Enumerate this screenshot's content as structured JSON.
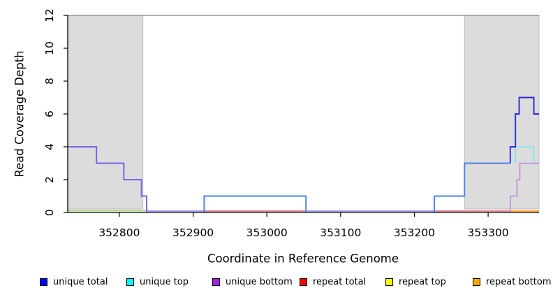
{
  "chart_data": {
    "type": "line",
    "subtype": "step-coverage",
    "title": "",
    "xlabel": "Coordinate in Reference Genome",
    "ylabel": "Read Coverage Depth",
    "xlim": [
      352730,
      353369
    ],
    "ylim": [
      0,
      12
    ],
    "xticks": [
      352800,
      352900,
      353000,
      353100,
      353200,
      353300
    ],
    "yticks": [
      0,
      2,
      4,
      6,
      8,
      10,
      12
    ],
    "grid": false,
    "legend_position": "bottom",
    "legend": [
      {
        "label": "unique total",
        "color": "#0000FF"
      },
      {
        "label": "unique top",
        "color": "#00FFFF"
      },
      {
        "label": "unique bottom",
        "color": "#A020F0"
      },
      {
        "label": "repeat total",
        "color": "#FF0000"
      },
      {
        "label": "repeat top",
        "color": "#FFFF00"
      },
      {
        "label": "repeat bottom",
        "color": "#FFA500"
      }
    ],
    "shaded_regions": [
      {
        "x0": 352730,
        "x1": 352832
      },
      {
        "x0": 353268,
        "x1": 353369
      }
    ],
    "top_reference_line": {
      "y": 12,
      "color": "#999999"
    },
    "series": [
      {
        "name": "unique total",
        "color": "#0000FF",
        "steps": [
          [
            352730,
            4
          ],
          [
            352769,
            3
          ],
          [
            352806,
            2
          ],
          [
            352830,
            1
          ],
          [
            352837,
            0
          ],
          [
            352915,
            1
          ],
          [
            353053,
            0
          ],
          [
            353227,
            1
          ],
          [
            353268,
            3
          ],
          [
            353330,
            4
          ],
          [
            353337,
            6
          ],
          [
            353342,
            7
          ],
          [
            353362,
            6
          ],
          [
            353369,
            6
          ]
        ]
      },
      {
        "name": "unique top",
        "color": "#00FFFF",
        "steps": [
          [
            352730,
            0
          ],
          [
            352915,
            1
          ],
          [
            353053,
            0
          ],
          [
            353227,
            1
          ],
          [
            353268,
            3
          ],
          [
            353337,
            4
          ],
          [
            353362,
            3
          ],
          [
            353369,
            3
          ]
        ]
      },
      {
        "name": "unique bottom",
        "color": "#A020F0",
        "steps": [
          [
            352730,
            4
          ],
          [
            352769,
            3
          ],
          [
            352806,
            2
          ],
          [
            352830,
            1
          ],
          [
            352837,
            0
          ],
          [
            353330,
            1
          ],
          [
            353339,
            2
          ],
          [
            353343,
            3
          ],
          [
            353369,
            3
          ]
        ]
      },
      {
        "name": "repeat total",
        "color": "#FF0000",
        "steps": [
          [
            352730,
            0
          ],
          [
            353369,
            0
          ]
        ]
      },
      {
        "name": "repeat top",
        "color": "#FFFF00",
        "steps": [
          [
            352730,
            0
          ],
          [
            353369,
            0
          ]
        ]
      },
      {
        "name": "repeat bottom",
        "color": "#FFA500",
        "steps": [
          [
            352730,
            0
          ],
          [
            353369,
            0
          ]
        ]
      }
    ],
    "render_segments": [
      {
        "id": "unique-total-and-bottom-left",
        "color": "#7468e4",
        "width": 2,
        "points": [
          [
            352730,
            4
          ],
          [
            352769,
            4
          ],
          [
            352769,
            3
          ],
          [
            352806,
            3
          ],
          [
            352806,
            2
          ],
          [
            352830,
            2
          ],
          [
            352830,
            1
          ],
          [
            352837,
            1
          ],
          [
            352837,
            0
          ]
        ]
      },
      {
        "id": "unique-total-and-top-bump",
        "color": "#4d86e8",
        "width": 2,
        "points": [
          [
            352915,
            0
          ],
          [
            352915,
            1
          ],
          [
            353053,
            1
          ],
          [
            353053,
            0
          ]
        ]
      },
      {
        "id": "unique-total-and-top-rise",
        "color": "#4d86e8",
        "width": 2,
        "points": [
          [
            353227,
            0
          ],
          [
            353227,
            1
          ],
          [
            353268,
            1
          ],
          [
            353268,
            3
          ],
          [
            353330,
            3
          ]
        ]
      },
      {
        "id": "unique-top-right",
        "color": "#79e7f0",
        "width": 1.6,
        "points": [
          [
            353337,
            3
          ],
          [
            353337,
            4
          ],
          [
            353362,
            4
          ],
          [
            353362,
            3
          ],
          [
            353369,
            3
          ]
        ]
      },
      {
        "id": "unique-bottom-right",
        "color": "#c388e2",
        "width": 1.6,
        "points": [
          [
            353330,
            0
          ],
          [
            353330,
            1
          ],
          [
            353339,
            1
          ],
          [
            353339,
            2
          ],
          [
            353343,
            2
          ],
          [
            353343,
            3
          ],
          [
            353369,
            3
          ]
        ]
      },
      {
        "id": "unique-total-right",
        "color": "#2b2bd6",
        "width": 1.9,
        "points": [
          [
            353330,
            3
          ],
          [
            353330,
            4
          ],
          [
            353337,
            4
          ],
          [
            353337,
            6
          ],
          [
            353342,
            6
          ],
          [
            353342,
            7
          ],
          [
            353362,
            7
          ],
          [
            353362,
            6
          ],
          [
            353369,
            6
          ]
        ]
      }
    ],
    "zero_segments": [
      {
        "id": "repeat-top-zero-left",
        "x0": 352730,
        "x1": 352836,
        "dy": 1.4,
        "color": "#ece5b4",
        "width": 1.6
      },
      {
        "id": "unique-top-zero-left",
        "x0": 352730,
        "x1": 352836,
        "dy": 3.0,
        "color": "#8bce8b",
        "width": 1.6
      },
      {
        "id": "unique-zero-gap1",
        "x0": 352837,
        "x1": 352915,
        "dy": 2.0,
        "color": "#7468e4",
        "width": 1.6
      },
      {
        "id": "repeat-total-zero-bump",
        "x0": 352915,
        "x1": 353053,
        "dy": 2.0,
        "color": "#d5495e",
        "width": 1.6
      },
      {
        "id": "unique-zero-gap2",
        "x0": 353053,
        "x1": 353227,
        "dy": 2.0,
        "color": "#7468e4",
        "width": 1.6
      },
      {
        "id": "repeat-total-zero-right",
        "x0": 353227,
        "x1": 353330,
        "dy": 2.0,
        "color": "#d5495e",
        "width": 1.6
      },
      {
        "id": "repeat-bottom-zero",
        "x0": 353330,
        "x1": 353369,
        "dy": 2.0,
        "color": "#ff9d26",
        "width": 2.0
      }
    ],
    "colors": {
      "shade": "#DCDCDC",
      "shade_border": "#BDBDBD",
      "axis": "#000000",
      "tick_label": "#000000"
    }
  }
}
